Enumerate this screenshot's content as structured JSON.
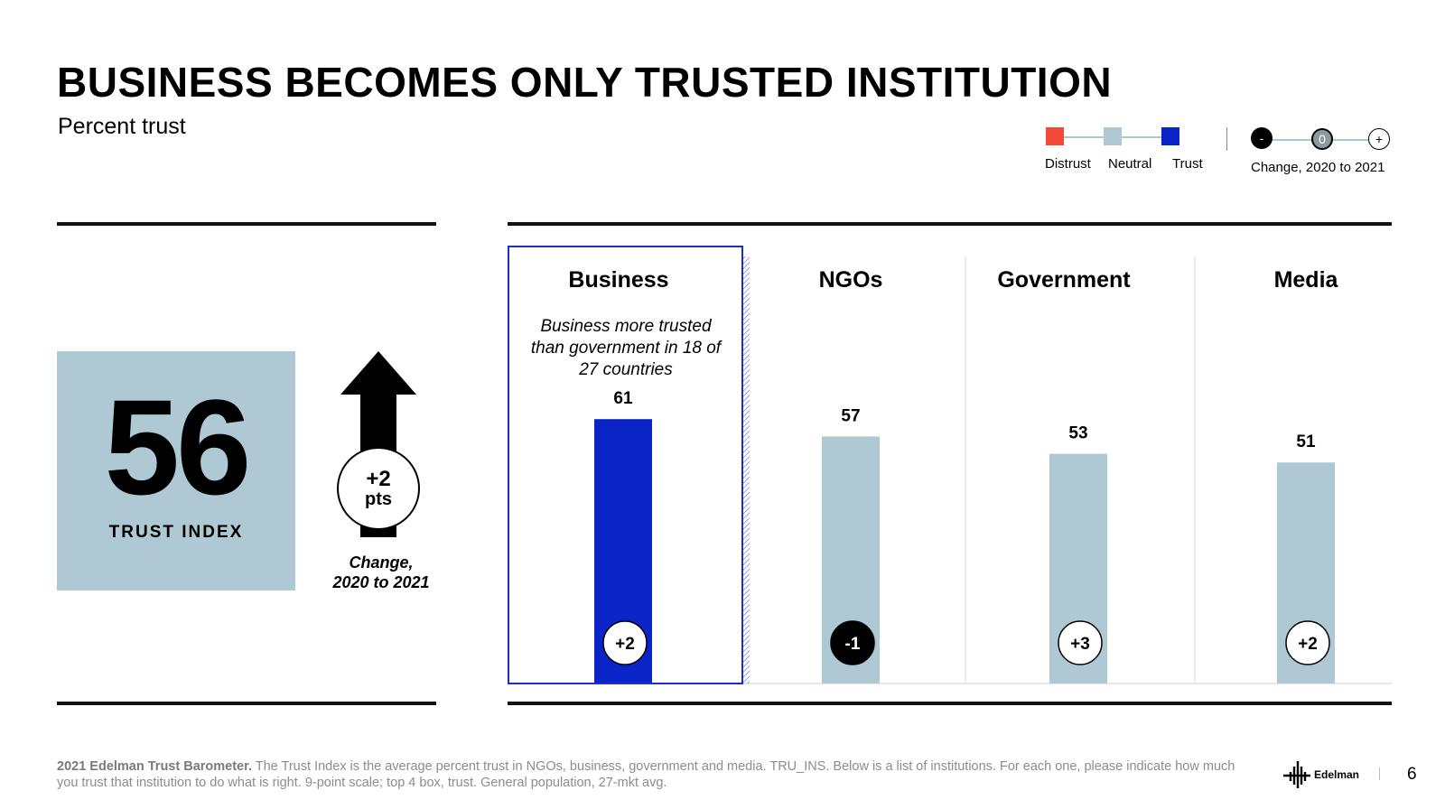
{
  "title": "BUSINESS BECOMES ONLY TRUSTED INSTITUTION",
  "subtitle": "Percent trust",
  "legend": {
    "distrust_label": "Distrust",
    "neutral_label": "Neutral",
    "trust_label": "Trust",
    "change_minus": "-",
    "change_zero": "0",
    "change_plus": "+",
    "change_label": "Change, 2020 to 2021",
    "colors": {
      "distrust": "#f2493a",
      "neutral": "#aec9d3",
      "trust": "#0a24c8"
    }
  },
  "trust_index": {
    "value": "56",
    "label": "TRUST INDEX",
    "change_value": "+2",
    "change_unit": "pts",
    "change_caption_line1": "Change,",
    "change_caption_line2": "2020 to 2021",
    "arrow_icon": "up-arrow-icon"
  },
  "business_note": "Business more trusted than government in 18 of 27 countries",
  "chart_data": {
    "type": "bar",
    "title": "Percent trust",
    "categories": [
      "Business",
      "NGOs",
      "Government",
      "Media"
    ],
    "values": [
      61,
      57,
      53,
      51
    ],
    "value_labels": [
      "61",
      "57",
      "53",
      "51"
    ],
    "changes": [
      "+2",
      "-1",
      "+3",
      "+2"
    ],
    "change_direction": [
      "up",
      "down",
      "up",
      "up"
    ],
    "category_status": [
      "trust",
      "neutral",
      "neutral",
      "neutral"
    ],
    "highlight_category": "Business",
    "ylim": [
      0,
      100
    ],
    "xlabel": "",
    "ylabel": ""
  },
  "footer": {
    "source_bold": "2021 Edelman Trust Barometer.",
    "source_text": "The Trust Index is the average percent trust in NGOs, business, government and media. TRU_INS. Below is a list of institutions. For each one, please indicate how much you trust that institution to do what is right. 9-point scale; top 4 box, trust. General population, 27-mkt avg.",
    "logo_text": "Edelman",
    "page_number": "6"
  }
}
